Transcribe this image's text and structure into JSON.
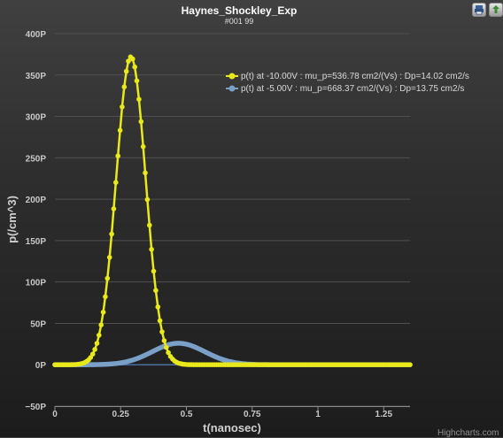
{
  "chart_data": {
    "type": "scatter",
    "title": "Haynes_Shockley_Exp",
    "subtitle": "#001 99",
    "xlabel": "t(nanosec)",
    "ylabel": "p(/cm^3)",
    "xlim": [
      0,
      1.35
    ],
    "ylim": [
      -50,
      400
    ],
    "x_ticks": [
      "0",
      "0.25",
      "0.5",
      "0.75",
      "1",
      "1.25"
    ],
    "y_ticks": [
      "−50P",
      "0P",
      "50P",
      "100P",
      "150P",
      "200P",
      "250P",
      "300P",
      "350P",
      "400P"
    ],
    "grid": true,
    "legend_position": "top-right",
    "series": [
      {
        "name": "p(t) at -10.00V : mu_p=536.78 cm2/(Vs) : Dp=14.02 cm2/s",
        "color": "#e8e81a",
        "peak_x": 0.289,
        "peak_y": 372,
        "x_start": 0,
        "x_end": 1.35,
        "n_points": 170
      },
      {
        "name": "p(t) at -5.00V : mu_p=668.37 cm2/(Vs) : Dp=13.75 cm2/s",
        "color": "#7aa0c8",
        "peak_x": 0.47,
        "peak_y": 26,
        "x_start": 0,
        "x_end": 1.35,
        "n_points": 260
      }
    ]
  },
  "toolbar": {
    "print_icon": "print-icon",
    "export_icon": "export-icon"
  },
  "credits": "Highcharts.com"
}
